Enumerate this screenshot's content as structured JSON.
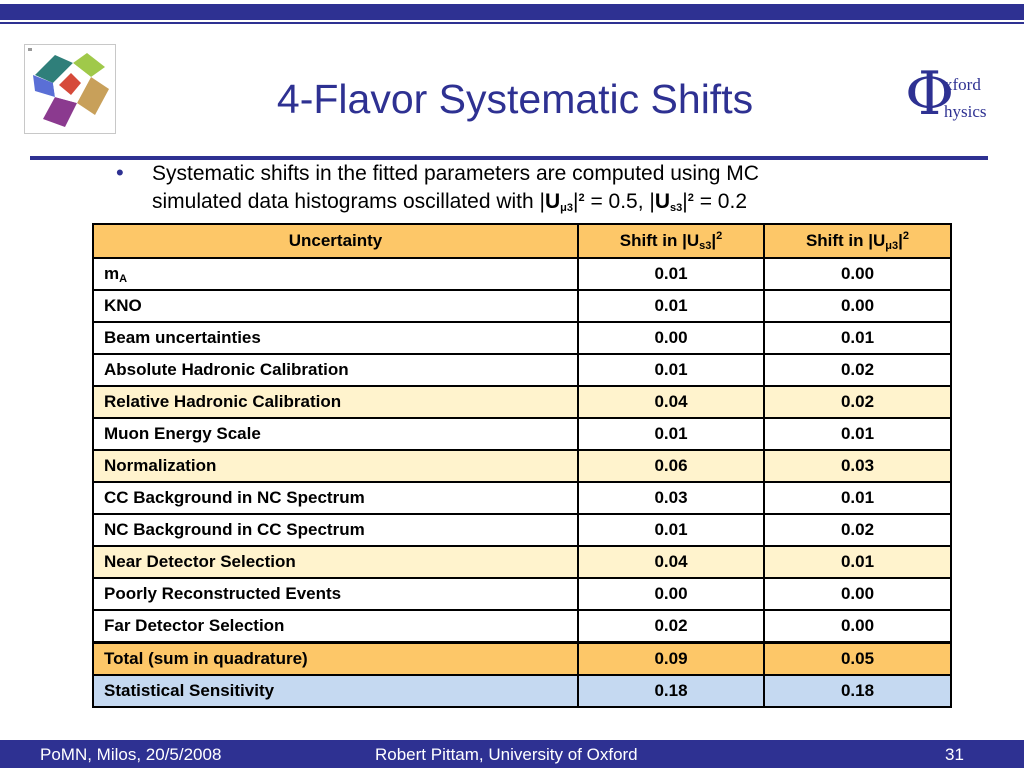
{
  "slide": {
    "title": "4-Flavor Systematic Shifts",
    "bullet_symbol": "•",
    "bullet_line1": "Systematic shifts in the fitted parameters are computed using  MC",
    "bullet_line2_prefix": "simulated data histograms oscillated with |",
    "u_letter": "U",
    "sub_mu3": "μ3",
    "sub_s3": "s3",
    "sup_2": "2",
    "bullet_val1": " = 0.5, |",
    "bullet_val2": " = 0.2",
    "bar": "|"
  },
  "oxford_logo": {
    "phi": "Φ",
    "word1": "xford",
    "word2": "hysics"
  },
  "logo_icon": "triangular-knot-logo",
  "table": {
    "header": {
      "col1": "Uncertainty",
      "col2_prefix": "Shift in |U",
      "col2_sub": "s3",
      "col3_prefix": "Shift in |U",
      "col3_sub": "μ3",
      "suffix": "|",
      "sup": "2"
    },
    "rows": [
      {
        "label": "m",
        "label_sub": "A",
        "s3": "0.01",
        "mu3": "0.00"
      },
      {
        "label": "KNO",
        "s3": "0.01",
        "mu3": "0.00"
      },
      {
        "label": "Beam uncertainties",
        "s3": "0.00",
        "mu3": "0.01"
      },
      {
        "label": "Absolute Hadronic Calibration",
        "s3": "0.01",
        "mu3": "0.02"
      },
      {
        "label": "Relative Hadronic Calibration",
        "s3": "0.04",
        "mu3": "0.02"
      },
      {
        "label": "Muon Energy Scale",
        "s3": "0.01",
        "mu3": "0.01"
      },
      {
        "label": "Normalization",
        "s3": "0.06",
        "mu3": "0.03"
      },
      {
        "label": "CC Background in NC Spectrum",
        "s3": "0.03",
        "mu3": "0.01"
      },
      {
        "label": "NC Background in CC Spectrum",
        "s3": "0.01",
        "mu3": "0.02"
      },
      {
        "label": "Near Detector Selection",
        "s3": "0.04",
        "mu3": "0.01"
      },
      {
        "label": "Poorly Reconstructed Events",
        "s3": "0.00",
        "mu3": "0.00"
      },
      {
        "label": "Far Detector Selection",
        "s3": "0.02",
        "mu3": "0.00"
      },
      {
        "label": "Total (sum in quadrature)",
        "s3": "0.09",
        "mu3": "0.05"
      },
      {
        "label": "Statistical Sensitivity",
        "s3": "0.18",
        "mu3": "0.18"
      }
    ]
  },
  "colors": {
    "brand_blue": "#2e3192",
    "header_orange": "#fdc768",
    "highlight_cream": "#fff3cd",
    "stat_blue": "#c5d9f1"
  },
  "footer": {
    "left": "PoMN, Milos, 20/5/2008",
    "center": "Robert Pittam, University of Oxford",
    "page": "31"
  }
}
